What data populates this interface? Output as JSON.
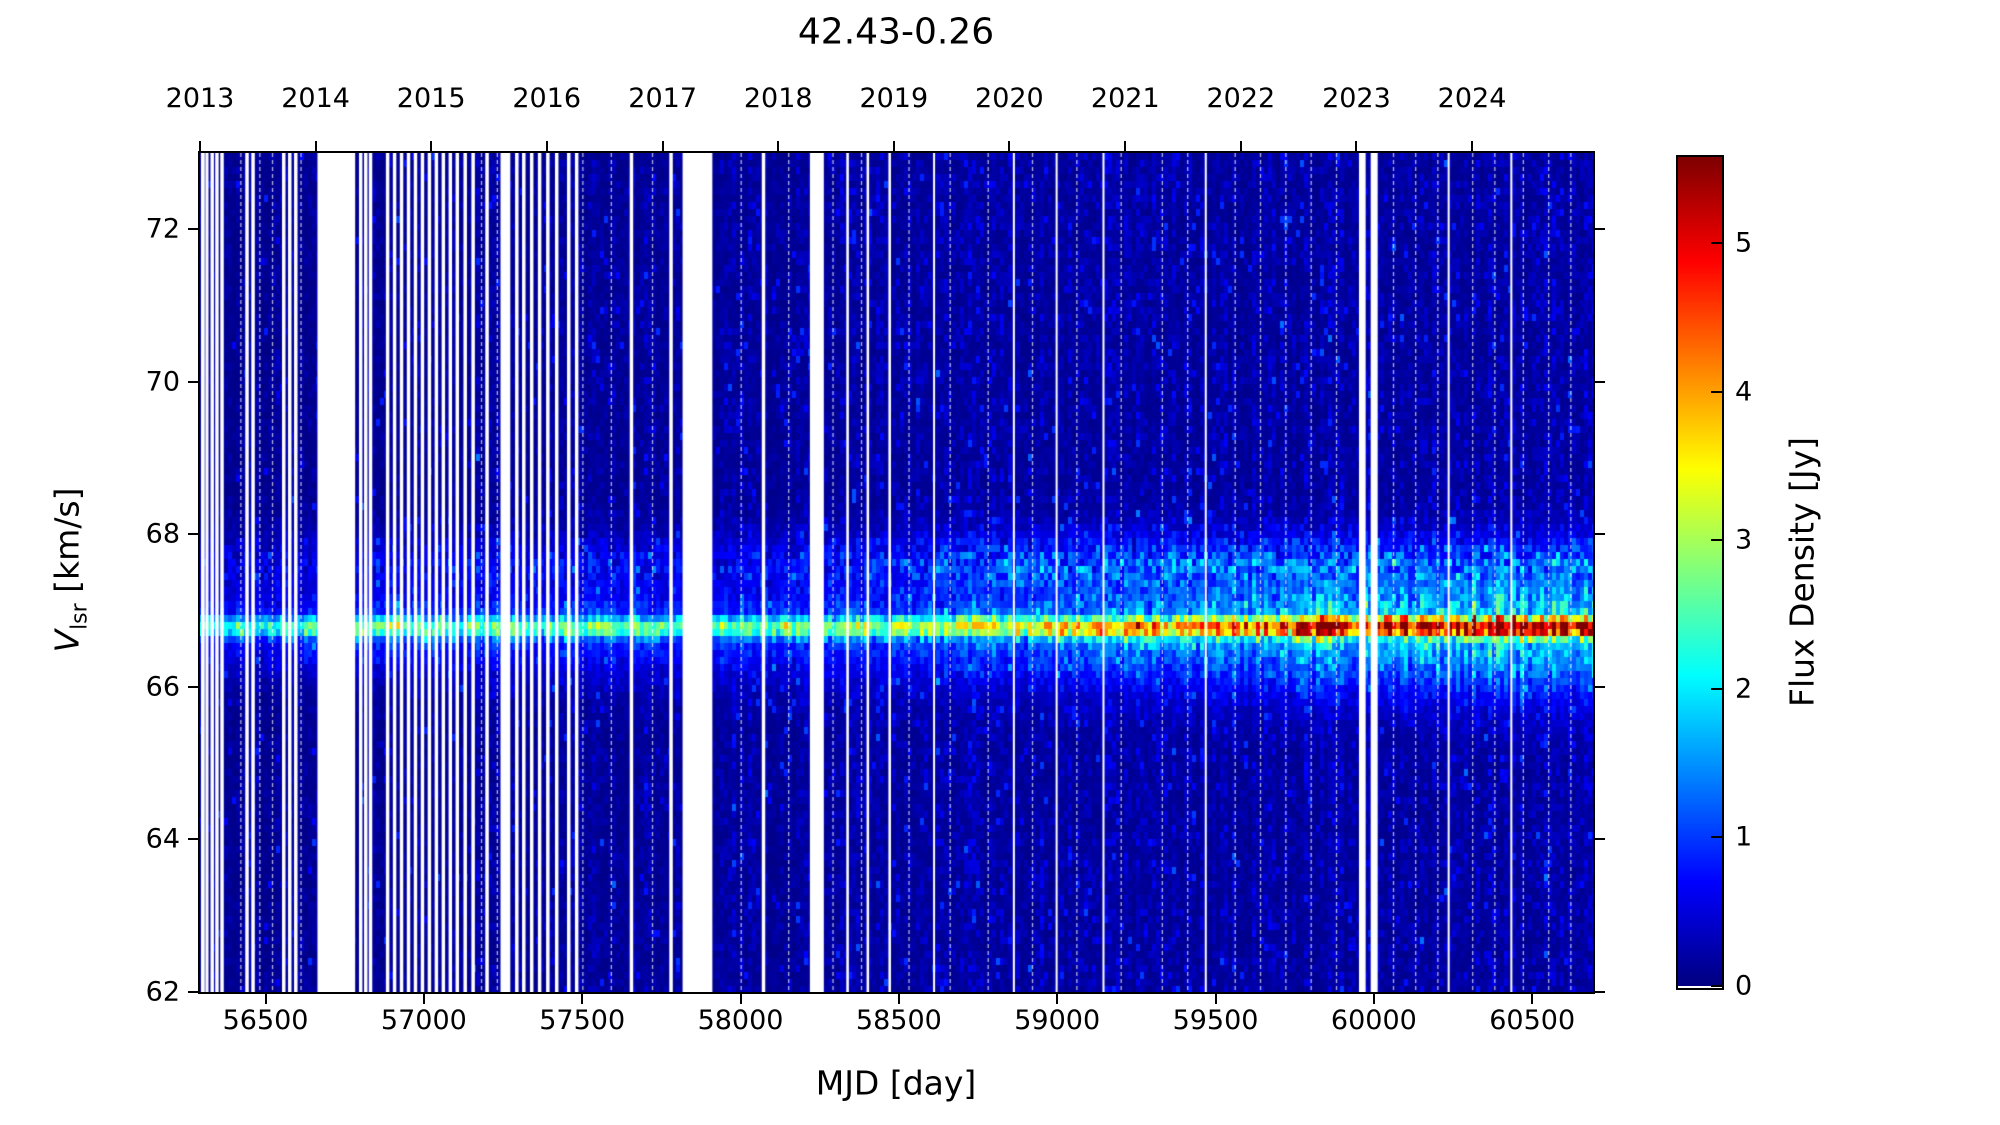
{
  "title": "42.43-0.26",
  "axes": {
    "x_bottom": {
      "label": "MJD [day]"
    },
    "y": {
      "label_v": "V",
      "label_sub": "lsr",
      "label_rest": " [km/s]"
    }
  },
  "colorbar": {
    "label": "Flux Density [Jy]"
  },
  "chart_data": {
    "type": "heatmap",
    "title": "42.43-0.26",
    "xlabel": "MJD [day]",
    "ylabel": "V_lsr [km/s]",
    "colorbar_label": "Flux Density [Jy]",
    "colormap": "jet",
    "grid": false,
    "x_range_mjd": [
      56293,
      60692
    ],
    "y_range_kms": [
      62,
      73
    ],
    "flux_range_jy": [
      0,
      5.58
    ],
    "x_ticks_mjd": [
      56500,
      57000,
      57500,
      58000,
      58500,
      59000,
      59500,
      60000,
      60500
    ],
    "x_ticks_year": [
      {
        "label": "2013",
        "mjd": 56293
      },
      {
        "label": "2014",
        "mjd": 56658
      },
      {
        "label": "2015",
        "mjd": 57023
      },
      {
        "label": "2016",
        "mjd": 57388
      },
      {
        "label": "2017",
        "mjd": 57754
      },
      {
        "label": "2018",
        "mjd": 58119
      },
      {
        "label": "2019",
        "mjd": 58484
      },
      {
        "label": "2020",
        "mjd": 58849
      },
      {
        "label": "2021",
        "mjd": 59215
      },
      {
        "label": "2022",
        "mjd": 59580
      },
      {
        "label": "2023",
        "mjd": 59945
      },
      {
        "label": "2024",
        "mjd": 60310
      }
    ],
    "y_ticks_kms": [
      62,
      64,
      66,
      68,
      70,
      72
    ],
    "colorbar_ticks_jy": [
      0,
      1,
      2,
      3,
      4,
      5
    ],
    "main_line": {
      "center_kms": 66.78,
      "sigma_kms": 0.12,
      "peak_timeline": [
        [
          56293,
          2.3
        ],
        [
          56800,
          2.5
        ],
        [
          57400,
          2.6
        ],
        [
          57900,
          2.45
        ],
        [
          58300,
          2.6
        ],
        [
          58600,
          2.85
        ],
        [
          58900,
          3.3
        ],
        [
          59100,
          3.6
        ],
        [
          59300,
          3.75
        ],
        [
          59500,
          4.05
        ],
        [
          59700,
          4.25
        ],
        [
          59840,
          5.35
        ],
        [
          59950,
          4.6
        ],
        [
          60100,
          5.0
        ],
        [
          60250,
          5.3
        ],
        [
          60450,
          5.25
        ],
        [
          60692,
          5.3
        ]
      ]
    },
    "pedestal": {
      "rel_amp": 0.32,
      "sigma_timeline": [
        [
          56293,
          0.38
        ],
        [
          58500,
          0.45
        ],
        [
          59500,
          0.55
        ],
        [
          60692,
          0.58
        ]
      ]
    },
    "secondary_band": {
      "center_kms": 67.55,
      "sigma_kms": 0.3,
      "peak_timeline": [
        [
          56293,
          0.45
        ],
        [
          57000,
          0.5
        ],
        [
          57500,
          0.55
        ],
        [
          58000,
          0.5
        ],
        [
          58500,
          0.7
        ],
        [
          58800,
          0.95
        ],
        [
          59200,
          1.05
        ],
        [
          59600,
          1.05
        ],
        [
          60100,
          1.0
        ],
        [
          60692,
          1.05
        ]
      ]
    },
    "noise_base_timeline": [
      [
        56293,
        0.22
      ],
      [
        58200,
        0.26
      ],
      [
        58900,
        0.3
      ],
      [
        60692,
        0.32
      ]
    ],
    "data_gaps_mjd": [
      [
        56664,
        56783
      ],
      [
        57242,
        57273
      ],
      [
        57817,
        57911
      ],
      [
        58219,
        58263
      ],
      [
        59953,
        59974
      ],
      [
        59990,
        60012
      ],
      [
        56296,
        56308
      ],
      [
        56310,
        56320
      ],
      [
        56326,
        56337
      ],
      [
        56341,
        56352
      ],
      [
        56357,
        56368
      ],
      [
        56436,
        56447
      ],
      [
        56455,
        56466
      ],
      [
        56552,
        56563
      ],
      [
        56571,
        56582
      ],
      [
        56590,
        56601
      ],
      [
        56795,
        56806
      ],
      [
        56811,
        56822
      ],
      [
        56826,
        56837
      ],
      [
        56880,
        56891
      ],
      [
        56902,
        56913
      ],
      [
        56924,
        56935
      ],
      [
        56946,
        56957
      ],
      [
        56968,
        56979
      ],
      [
        56990,
        57001
      ],
      [
        57012,
        57023
      ],
      [
        57034,
        57045
      ],
      [
        57056,
        57067
      ],
      [
        57078,
        57089
      ],
      [
        57100,
        57111
      ],
      [
        57125,
        57136
      ],
      [
        57150,
        57161
      ],
      [
        57194,
        57205
      ],
      [
        57288,
        57299
      ],
      [
        57310,
        57321
      ],
      [
        57335,
        57346
      ],
      [
        57360,
        57371
      ],
      [
        57386,
        57397
      ],
      [
        57414,
        57425
      ],
      [
        57452,
        57463
      ],
      [
        57477,
        57488
      ],
      [
        57650,
        57661
      ],
      [
        57775,
        57786
      ],
      [
        58067,
        58078
      ],
      [
        58334,
        58342
      ],
      [
        58398,
        58406
      ],
      [
        58467,
        58475
      ],
      [
        58608,
        58614
      ],
      [
        58860,
        58866
      ],
      [
        58995,
        59001
      ],
      [
        59143,
        59149
      ],
      [
        59466,
        59472
      ],
      [
        60233,
        60239
      ],
      [
        60431,
        60437
      ]
    ],
    "hairline_gaps_mjd": [
      56420,
      56480,
      56520,
      56610,
      57180,
      57230,
      57500,
      57590,
      57720,
      58000,
      58150,
      58290,
      58380,
      58530,
      58660,
      58780,
      58920,
      59060,
      59200,
      59330,
      59410,
      59560,
      59640,
      59720,
      59800,
      59880,
      60060,
      60130,
      60200,
      60310,
      60380,
      60470,
      60550,
      60620
    ]
  }
}
